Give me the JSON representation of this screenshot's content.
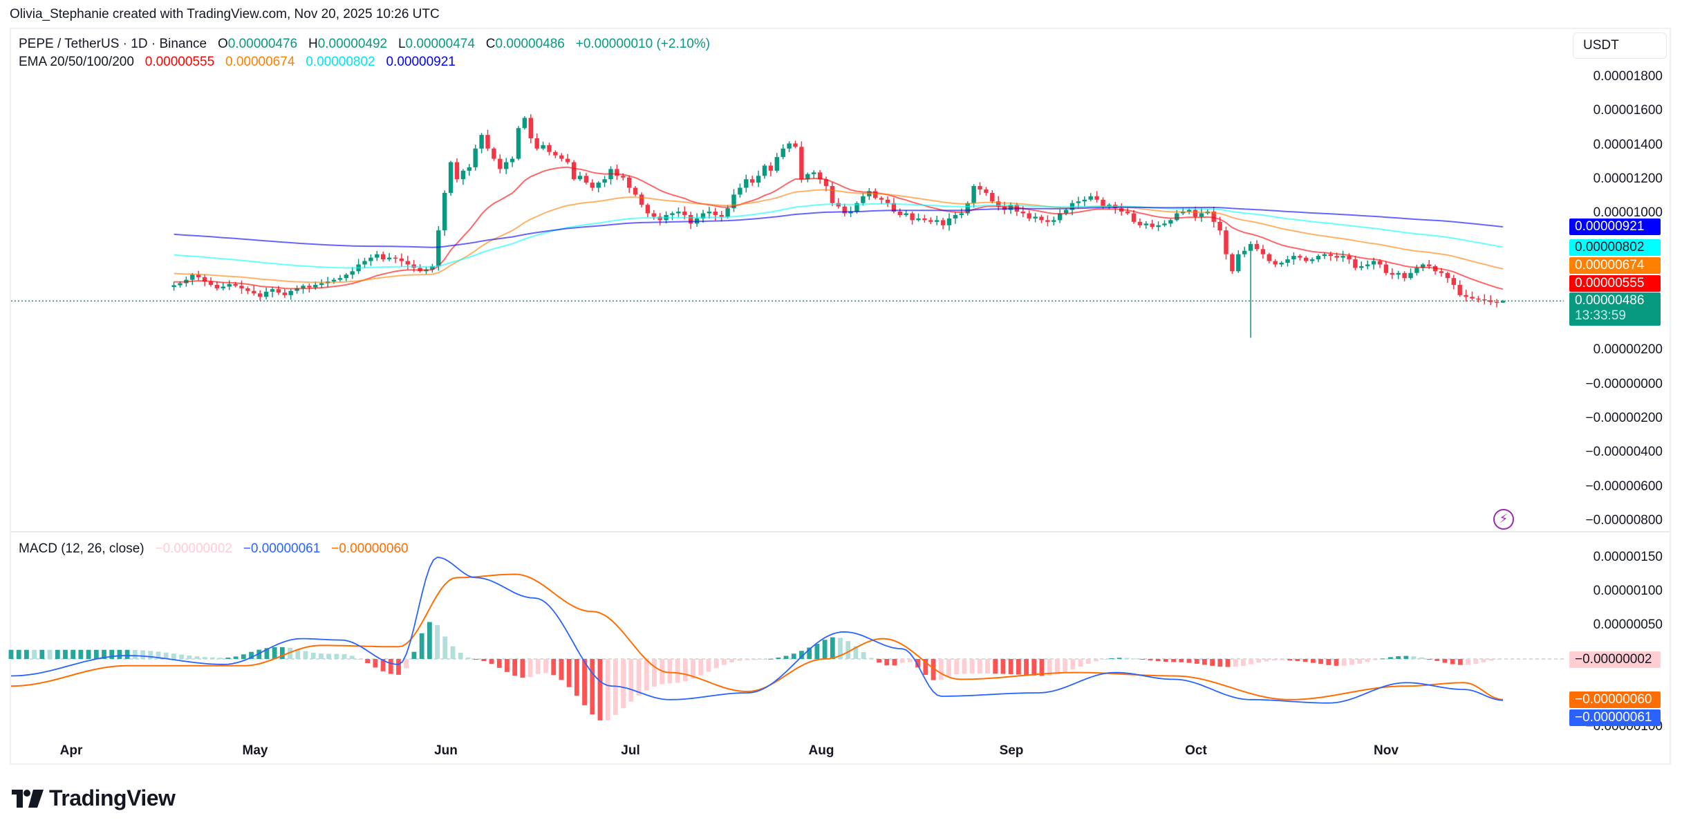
{
  "attribution": "Olivia_Stephanie created with TradingView.com, Nov 20, 2025 10:26 UTC",
  "header": {
    "symbol": "PEPE / TetherUS · 1D · Binance",
    "o_label": "O",
    "o_value": "0.00000476",
    "h_label": "H",
    "h_value": "0.00000492",
    "l_label": "L",
    "l_value": "0.00000474",
    "c_label": "C",
    "c_value": "0.00000486",
    "change": "+0.00000010 (+2.10%)"
  },
  "ema_legend": {
    "label": "EMA 20/50/100/200",
    "ema20": "0.00000555",
    "ema50": "0.00000674",
    "ema100": "0.00000802",
    "ema200": "0.00000921"
  },
  "macd_legend": {
    "label": "MACD (12, 26, close)",
    "histogram": "−0.00000002",
    "macd": "−0.00000061",
    "signal": "−0.00000060"
  },
  "currency_button": "USDT",
  "price_axis": [
    "0.00001800",
    "0.00001600",
    "0.00001400",
    "0.00001200",
    "0.00001000",
    "0.00000200",
    "−0.00000000",
    "−0.00000200",
    "−0.00000400",
    "−0.00000600",
    "−0.00000800"
  ],
  "price_tags": {
    "ema200": "0.00000921",
    "ema100": "0.00000802",
    "ema50": "0.00000674",
    "ema20": "0.00000555",
    "last": "0.00000486",
    "countdown": "13:33:59"
  },
  "macd_axis": [
    "0.00000150",
    "0.00000100",
    "0.00000050",
    "−0.00000100"
  ],
  "macd_tags": {
    "histogram": "−0.00000002",
    "signal": "−0.00000060",
    "macd": "−0.00000061"
  },
  "time_axis": [
    "Apr",
    "May",
    "Jun",
    "Jul",
    "Aug",
    "Sep",
    "Oct",
    "Nov"
  ],
  "logo_text": "TradingView",
  "colors": {
    "up": "#089981",
    "down": "#f23645",
    "ema20": "#ff0000",
    "ema50": "#ff7f00",
    "ema100": "#00ffff",
    "ema200": "#0000ff",
    "macd": "#2962ff",
    "signal": "#ff6d00",
    "hist_up_strong": "#26a69a",
    "hist_up_weak": "#b2dfdb",
    "hist_down_strong": "#ff5252",
    "hist_down_weak": "#ffcdd2",
    "bolt": "#9c27b0"
  },
  "chart_data": [
    {
      "type": "candlestick",
      "title": "PEPE / TetherUS · 1D · Binance",
      "unit": "USDT (values x1e-8)",
      "ylim": [
        -900,
        1900
      ],
      "x_start": "2025-03-22",
      "x_end": "2025-11-20",
      "closes": [
        578,
        590,
        610,
        640,
        625,
        600,
        580,
        560,
        570,
        585,
        575,
        560,
        545,
        530,
        510,
        540,
        555,
        535,
        520,
        545,
        560,
        575,
        565,
        580,
        590,
        600,
        610,
        620,
        640,
        660,
        700,
        720,
        740,
        760,
        730,
        740,
        735,
        720,
        700,
        680,
        660,
        670,
        690,
        900,
        1120,
        1300,
        1200,
        1250,
        1270,
        1380,
        1460,
        1380,
        1320,
        1260,
        1300,
        1320,
        1500,
        1560,
        1440,
        1380,
        1400,
        1360,
        1340,
        1320,
        1300,
        1200,
        1220,
        1180,
        1150,
        1180,
        1200,
        1260,
        1220,
        1210,
        1150,
        1110,
        1050,
        1000,
        980,
        960,
        990,
        1000,
        1010,
        990,
        940,
        970,
        1000,
        1010,
        990,
        980,
        1030,
        1110,
        1150,
        1200,
        1180,
        1220,
        1280,
        1250,
        1330,
        1380,
        1410,
        1390,
        1200,
        1230,
        1240,
        1200,
        1160,
        1060,
        1040,
        1000,
        1010,
        1060,
        1100,
        1130,
        1090,
        1080,
        1060,
        1010,
        990,
        1000,
        960,
        970,
        960,
        950,
        960,
        930,
        970,
        990,
        1000,
        1060,
        1160,
        1140,
        1120,
        1070,
        1040,
        1020,
        1050,
        1010,
        1000,
        970,
        980,
        960,
        950,
        960,
        1000,
        1020,
        1060,
        1070,
        1080,
        1100,
        1080,
        1040,
        1050,
        1030,
        1010,
        1000,
        950,
        930,
        940,
        920,
        930,
        940,
        960,
        1000,
        1010,
        1020,
        980,
        1000,
        1010,
        950,
        900,
        760,
        660,
        760,
        780,
        820,
        790,
        760,
        720,
        700,
        710,
        730,
        750,
        740,
        720,
        730,
        750,
        760,
        750,
        740,
        750,
        730,
        680,
        690,
        700,
        720,
        700,
        650,
        640,
        650,
        620,
        650,
        680,
        700,
        690,
        660,
        650,
        620,
        580,
        520,
        510,
        500,
        495,
        490,
        480,
        476,
        486
      ],
      "ema20_last": 555,
      "ema50_last": 674,
      "ema100_last": 802,
      "ema200_last": 921,
      "last_close": 486,
      "notable": {
        "big_wick_low_date": "2025-10-10",
        "big_wick_low_approx": 270,
        "high_approx": 1620
      }
    },
    {
      "type": "line+histogram",
      "title": "MACD (12, 26, close)",
      "unit": "x1e-8",
      "ylim": [
        -110,
        175
      ],
      "macd_keypoints": [
        [
          0,
          -25
        ],
        [
          30,
          5
        ],
        [
          55,
          -8
        ],
        [
          75,
          30
        ],
        [
          85,
          28
        ],
        [
          100,
          -8
        ],
        [
          110,
          150
        ],
        [
          120,
          120
        ],
        [
          135,
          90
        ],
        [
          155,
          -40
        ],
        [
          170,
          -60
        ],
        [
          190,
          -50
        ],
        [
          215,
          40
        ],
        [
          230,
          15
        ],
        [
          240,
          -55
        ],
        [
          265,
          -50
        ],
        [
          285,
          -20
        ],
        [
          300,
          -30
        ],
        [
          320,
          -60
        ],
        [
          340,
          -65
        ],
        [
          360,
          -35
        ],
        [
          375,
          -45
        ],
        [
          385,
          -61
        ]
      ],
      "signal_keypoints": [
        [
          0,
          -40
        ],
        [
          30,
          -10
        ],
        [
          60,
          -10
        ],
        [
          80,
          20
        ],
        [
          100,
          18
        ],
        [
          115,
          120
        ],
        [
          130,
          125
        ],
        [
          150,
          70
        ],
        [
          170,
          -20
        ],
        [
          190,
          -48
        ],
        [
          210,
          0
        ],
        [
          225,
          30
        ],
        [
          245,
          -30
        ],
        [
          275,
          -20
        ],
        [
          300,
          -25
        ],
        [
          330,
          -60
        ],
        [
          360,
          -40
        ],
        [
          375,
          -35
        ],
        [
          385,
          -60
        ]
      ],
      "last_histogram": -2,
      "last_macd": -61,
      "last_signal": -60
    }
  ]
}
